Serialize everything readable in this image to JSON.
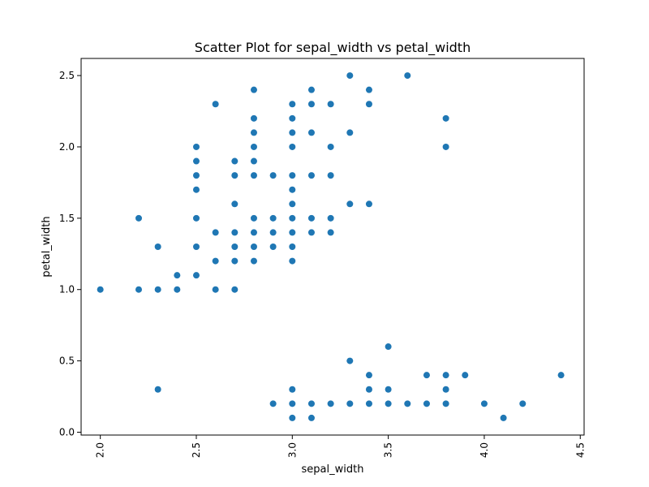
{
  "chart_data": {
    "type": "scatter",
    "title": "Scatter Plot for sepal_width vs petal_width",
    "xlabel": "sepal_width",
    "ylabel": "petal_width",
    "xlim": [
      1.9,
      4.52
    ],
    "ylim": [
      -0.02,
      2.62
    ],
    "grid": false,
    "legend": "none",
    "color": "#1f77b4",
    "xticks": [
      {
        "value": 2.0,
        "label": "2.0"
      },
      {
        "value": 2.5,
        "label": "2.5"
      },
      {
        "value": 3.0,
        "label": "3.0"
      },
      {
        "value": 3.5,
        "label": "3.5"
      },
      {
        "value": 4.0,
        "label": "4.0"
      },
      {
        "value": 4.5,
        "label": "4.5"
      }
    ],
    "yticks": [
      {
        "value": 0.0,
        "label": "0.0"
      },
      {
        "value": 0.5,
        "label": "0.5"
      },
      {
        "value": 1.0,
        "label": "1.0"
      },
      {
        "value": 1.5,
        "label": "1.5"
      },
      {
        "value": 2.0,
        "label": "2.0"
      },
      {
        "value": 2.5,
        "label": "2.5"
      }
    ],
    "points": [
      [
        2.0,
        1.0
      ],
      [
        2.2,
        1.5
      ],
      [
        2.2,
        1.0
      ],
      [
        2.3,
        1.3
      ],
      [
        2.3,
        1.0
      ],
      [
        2.3,
        0.3
      ],
      [
        2.4,
        1.1
      ],
      [
        2.4,
        1.0
      ],
      [
        2.5,
        2.0
      ],
      [
        2.5,
        1.9
      ],
      [
        2.5,
        1.8
      ],
      [
        2.5,
        1.7
      ],
      [
        2.5,
        1.5
      ],
      [
        2.5,
        1.3
      ],
      [
        2.5,
        1.1
      ],
      [
        2.6,
        2.3
      ],
      [
        2.6,
        1.4
      ],
      [
        2.6,
        1.2
      ],
      [
        2.6,
        1.0
      ],
      [
        2.7,
        1.9
      ],
      [
        2.7,
        1.8
      ],
      [
        2.7,
        1.6
      ],
      [
        2.7,
        1.4
      ],
      [
        2.7,
        1.3
      ],
      [
        2.7,
        1.2
      ],
      [
        2.7,
        1.0
      ],
      [
        2.8,
        2.4
      ],
      [
        2.8,
        2.2
      ],
      [
        2.8,
        2.1
      ],
      [
        2.8,
        2.0
      ],
      [
        2.8,
        1.9
      ],
      [
        2.8,
        1.8
      ],
      [
        2.8,
        1.5
      ],
      [
        2.8,
        1.4
      ],
      [
        2.8,
        1.3
      ],
      [
        2.8,
        1.2
      ],
      [
        2.9,
        1.8
      ],
      [
        2.9,
        1.5
      ],
      [
        2.9,
        1.4
      ],
      [
        2.9,
        1.3
      ],
      [
        2.9,
        0.2
      ],
      [
        3.0,
        2.3
      ],
      [
        3.0,
        2.2
      ],
      [
        3.0,
        2.1
      ],
      [
        3.0,
        2.0
      ],
      [
        3.0,
        1.8
      ],
      [
        3.0,
        1.7
      ],
      [
        3.0,
        1.6
      ],
      [
        3.0,
        1.5
      ],
      [
        3.0,
        1.4
      ],
      [
        3.0,
        1.3
      ],
      [
        3.0,
        1.2
      ],
      [
        3.0,
        0.3
      ],
      [
        3.0,
        0.2
      ],
      [
        3.0,
        0.1
      ],
      [
        3.1,
        2.4
      ],
      [
        3.1,
        2.3
      ],
      [
        3.1,
        2.1
      ],
      [
        3.1,
        1.8
      ],
      [
        3.1,
        1.5
      ],
      [
        3.1,
        1.4
      ],
      [
        3.1,
        0.2
      ],
      [
        3.1,
        0.1
      ],
      [
        3.2,
        2.3
      ],
      [
        3.2,
        2.0
      ],
      [
        3.2,
        1.8
      ],
      [
        3.2,
        1.5
      ],
      [
        3.2,
        1.4
      ],
      [
        3.2,
        0.2
      ],
      [
        3.3,
        2.5
      ],
      [
        3.3,
        2.1
      ],
      [
        3.3,
        1.6
      ],
      [
        3.3,
        0.5
      ],
      [
        3.3,
        0.2
      ],
      [
        3.4,
        2.4
      ],
      [
        3.4,
        2.3
      ],
      [
        3.4,
        1.6
      ],
      [
        3.4,
        0.4
      ],
      [
        3.4,
        0.3
      ],
      [
        3.4,
        0.2
      ],
      [
        3.5,
        0.6
      ],
      [
        3.5,
        0.3
      ],
      [
        3.5,
        0.2
      ],
      [
        3.6,
        2.5
      ],
      [
        3.6,
        0.2
      ],
      [
        3.7,
        0.4
      ],
      [
        3.7,
        0.2
      ],
      [
        3.8,
        2.2
      ],
      [
        3.8,
        2.0
      ],
      [
        3.8,
        0.4
      ],
      [
        3.8,
        0.3
      ],
      [
        3.8,
        0.2
      ],
      [
        3.9,
        0.4
      ],
      [
        4.0,
        0.2
      ],
      [
        4.1,
        0.1
      ],
      [
        4.2,
        0.2
      ],
      [
        4.4,
        0.4
      ]
    ]
  }
}
